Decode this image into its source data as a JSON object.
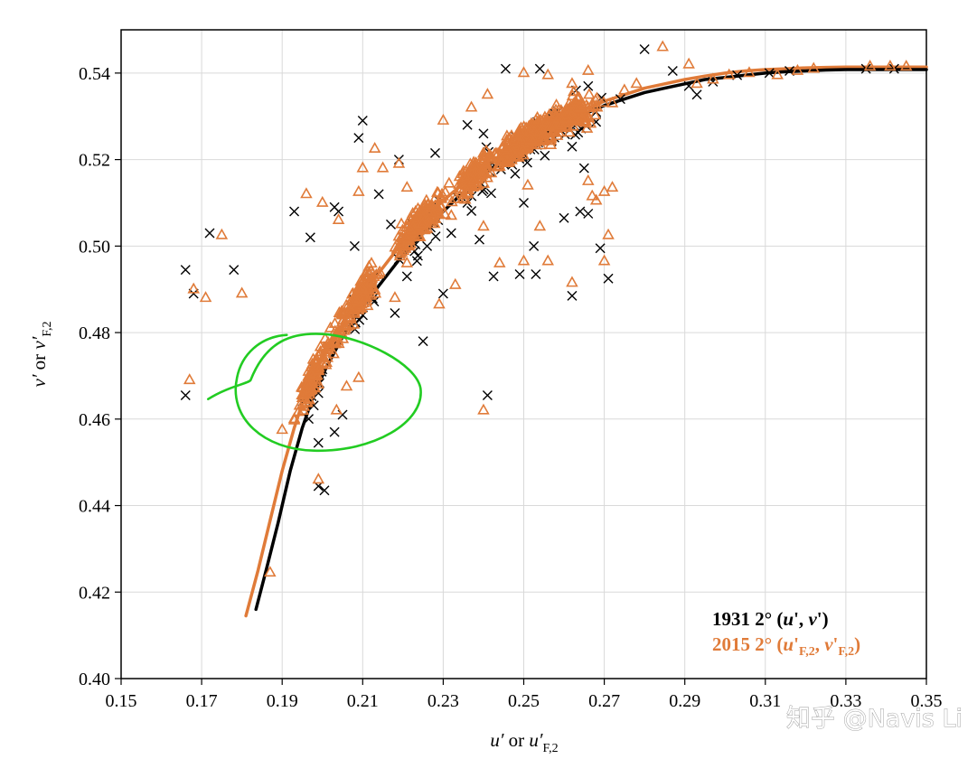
{
  "chart_data": {
    "type": "scatter",
    "xlabel": "u′ or u′F,2",
    "ylabel": "v′ or v′F,2",
    "xlim": [
      0.15,
      0.35
    ],
    "ylim": [
      0.4,
      0.55
    ],
    "xticks": [
      "0.15",
      "0.17",
      "0.19",
      "0.21",
      "0.23",
      "0.25",
      "0.27",
      "0.29",
      "0.31",
      "0.33",
      "0.35"
    ],
    "yticks": [
      "0.40",
      "0.42",
      "0.44",
      "0.46",
      "0.48",
      "0.50",
      "0.52",
      "0.54"
    ],
    "grid": true,
    "legend_position": "bottom-right",
    "legend": [
      {
        "label_main": "1931 2° (",
        "label_vars": "u′, v′",
        "label_end": ")",
        "color": "#000000",
        "marker": "x"
      },
      {
        "label_main": "2015 2° (",
        "label_vars": "u′F,2, v′F,2",
        "label_end": ")",
        "color": "#e07b39",
        "marker": "triangle"
      }
    ],
    "series": [
      {
        "name": "1931 2° (u′, v′)",
        "color": "#000000",
        "marker": "x",
        "points": [
          [
            0.166,
            0.4945
          ],
          [
            0.168,
            0.489
          ],
          [
            0.172,
            0.503
          ],
          [
            0.178,
            0.4945
          ],
          [
            0.166,
            0.4655
          ],
          [
            0.193,
            0.508
          ],
          [
            0.197,
            0.502
          ],
          [
            0.203,
            0.509
          ],
          [
            0.209,
            0.525
          ],
          [
            0.21,
            0.529
          ],
          [
            0.204,
            0.508
          ],
          [
            0.219,
            0.52
          ],
          [
            0.208,
            0.5
          ],
          [
            0.214,
            0.512
          ],
          [
            0.217,
            0.505
          ],
          [
            0.203,
            0.457
          ],
          [
            0.205,
            0.461
          ],
          [
            0.199,
            0.4545
          ],
          [
            0.199,
            0.4445
          ],
          [
            0.2005,
            0.4435
          ],
          [
            0.241,
            0.4655
          ],
          [
            0.228,
            0.5215
          ],
          [
            0.236,
            0.528
          ],
          [
            0.24,
            0.526
          ],
          [
            0.2455,
            0.541
          ],
          [
            0.254,
            0.541
          ],
          [
            0.263,
            0.536
          ],
          [
            0.266,
            0.537
          ],
          [
            0.28,
            0.5455
          ],
          [
            0.287,
            0.5405
          ],
          [
            0.26,
            0.5065
          ],
          [
            0.264,
            0.508
          ],
          [
            0.262,
            0.4885
          ],
          [
            0.269,
            0.4995
          ],
          [
            0.271,
            0.4925
          ],
          [
            0.249,
            0.4935
          ],
          [
            0.253,
            0.4935
          ],
          [
            0.225,
            0.478
          ],
          [
            0.23,
            0.489
          ],
          [
            0.236,
            0.51
          ],
          [
            0.245,
            0.519
          ],
          [
            0.252,
            0.5245
          ],
          [
            0.257,
            0.527
          ],
          [
            0.262,
            0.523
          ],
          [
            0.268,
            0.531
          ],
          [
            0.274,
            0.534
          ],
          [
            0.291,
            0.537
          ],
          [
            0.293,
            0.535
          ],
          [
            0.297,
            0.538
          ],
          [
            0.303,
            0.5395
          ],
          [
            0.311,
            0.54
          ],
          [
            0.316,
            0.5405
          ],
          [
            0.335,
            0.541
          ],
          [
            0.342,
            0.541
          ],
          [
            0.239,
            0.5015
          ],
          [
            0.2425,
            0.493
          ],
          [
            0.25,
            0.51
          ],
          [
            0.2525,
            0.5
          ],
          [
            0.265,
            0.518
          ],
          [
            0.266,
            0.5075
          ],
          [
            0.197,
            0.4665
          ],
          [
            0.199,
            0.466
          ],
          [
            0.2,
            0.4715
          ],
          [
            0.221,
            0.493
          ],
          [
            0.226,
            0.5
          ],
          [
            0.232,
            0.503
          ],
          [
            0.218,
            0.4845
          ],
          [
            0.211,
            0.489
          ]
        ]
      },
      {
        "name": "2015 2° (u′F,2, v′F,2)",
        "color": "#e07b39",
        "marker": "triangle",
        "points": [
          [
            0.167,
            0.469
          ],
          [
            0.168,
            0.49
          ],
          [
            0.171,
            0.488
          ],
          [
            0.175,
            0.5025
          ],
          [
            0.18,
            0.489
          ],
          [
            0.187,
            0.4245
          ],
          [
            0.196,
            0.512
          ],
          [
            0.2,
            0.51
          ],
          [
            0.204,
            0.506
          ],
          [
            0.209,
            0.5125
          ],
          [
            0.213,
            0.5225
          ],
          [
            0.21,
            0.518
          ],
          [
            0.215,
            0.518
          ],
          [
            0.221,
            0.5135
          ],
          [
            0.219,
            0.519
          ],
          [
            0.199,
            0.446
          ],
          [
            0.193,
            0.46
          ],
          [
            0.19,
            0.4575
          ],
          [
            0.24,
            0.462
          ],
          [
            0.23,
            0.529
          ],
          [
            0.237,
            0.532
          ],
          [
            0.241,
            0.535
          ],
          [
            0.25,
            0.54
          ],
          [
            0.256,
            0.5395
          ],
          [
            0.262,
            0.5375
          ],
          [
            0.266,
            0.5405
          ],
          [
            0.278,
            0.5375
          ],
          [
            0.2845,
            0.546
          ],
          [
            0.291,
            0.542
          ],
          [
            0.268,
            0.5105
          ],
          [
            0.27,
            0.5125
          ],
          [
            0.262,
            0.4915
          ],
          [
            0.27,
            0.4965
          ],
          [
            0.271,
            0.5025
          ],
          [
            0.272,
            0.5135
          ],
          [
            0.25,
            0.4965
          ],
          [
            0.256,
            0.4965
          ],
          [
            0.229,
            0.4865
          ],
          [
            0.233,
            0.491
          ],
          [
            0.246,
            0.5195
          ],
          [
            0.253,
            0.529
          ],
          [
            0.258,
            0.53
          ],
          [
            0.264,
            0.532
          ],
          [
            0.272,
            0.533
          ],
          [
            0.275,
            0.536
          ],
          [
            0.293,
            0.5375
          ],
          [
            0.297,
            0.5385
          ],
          [
            0.301,
            0.5395
          ],
          [
            0.306,
            0.54
          ],
          [
            0.313,
            0.5395
          ],
          [
            0.318,
            0.5405
          ],
          [
            0.322,
            0.541
          ],
          [
            0.336,
            0.5415
          ],
          [
            0.341,
            0.5415
          ],
          [
            0.345,
            0.5415
          ],
          [
            0.24,
            0.5045
          ],
          [
            0.244,
            0.496
          ],
          [
            0.251,
            0.514
          ],
          [
            0.254,
            0.5045
          ],
          [
            0.266,
            0.515
          ],
          [
            0.267,
            0.5115
          ],
          [
            0.197,
            0.4705
          ],
          [
            0.199,
            0.4745
          ],
          [
            0.201,
            0.473
          ],
          [
            0.221,
            0.496
          ],
          [
            0.226,
            0.504
          ],
          [
            0.232,
            0.507
          ],
          [
            0.218,
            0.488
          ],
          [
            0.211,
            0.493
          ],
          [
            0.206,
            0.4675
          ],
          [
            0.2035,
            0.462
          ],
          [
            0.209,
            0.4695
          ]
        ]
      },
      {
        "name": "1931 2° (u′, v′)",
        "type": "line",
        "color": "#000000",
        "x": [
          0.1835,
          0.186,
          0.189,
          0.192,
          0.195,
          0.198,
          0.201,
          0.205,
          0.21,
          0.215,
          0.22,
          0.225,
          0.23,
          0.235,
          0.24,
          0.245,
          0.25,
          0.255,
          0.26,
          0.265,
          0.27,
          0.275,
          0.28,
          0.285,
          0.29,
          0.295,
          0.3,
          0.305,
          0.31,
          0.315,
          0.32,
          0.325,
          0.33,
          0.335,
          0.34,
          0.345,
          0.35
        ],
        "y": [
          0.416,
          0.425,
          0.436,
          0.448,
          0.458,
          0.466,
          0.472,
          0.479,
          0.486,
          0.492,
          0.498,
          0.503,
          0.508,
          0.5125,
          0.5165,
          0.52,
          0.5235,
          0.526,
          0.5285,
          0.5305,
          0.5325,
          0.534,
          0.5355,
          0.5365,
          0.5375,
          0.5385,
          0.539,
          0.5395,
          0.54,
          0.5403,
          0.5405,
          0.5407,
          0.5408,
          0.5408,
          0.5408,
          0.5408,
          0.5408
        ]
      },
      {
        "name": "2015 2° (u′F,2, v′F,2)",
        "type": "line",
        "color": "#e07b39",
        "x": [
          0.181,
          0.184,
          0.187,
          0.19,
          0.193,
          0.196,
          0.2,
          0.205,
          0.21,
          0.215,
          0.22,
          0.225,
          0.23,
          0.235,
          0.24,
          0.245,
          0.25,
          0.255,
          0.26,
          0.265,
          0.27,
          0.275,
          0.28,
          0.285,
          0.29,
          0.295,
          0.3,
          0.305,
          0.31,
          0.315,
          0.32,
          0.325,
          0.33,
          0.335,
          0.34,
          0.345,
          0.35
        ],
        "y": [
          0.4145,
          0.425,
          0.4365,
          0.448,
          0.458,
          0.4665,
          0.4745,
          0.482,
          0.489,
          0.495,
          0.501,
          0.506,
          0.5105,
          0.5145,
          0.518,
          0.5215,
          0.5245,
          0.527,
          0.5295,
          0.5315,
          0.5335,
          0.535,
          0.5365,
          0.5375,
          0.5385,
          0.5393,
          0.54,
          0.5405,
          0.5408,
          0.541,
          0.5412,
          0.5413,
          0.5414,
          0.5414,
          0.5414,
          0.5414,
          0.5414
        ]
      }
    ],
    "annotations": [
      {
        "type": "hand-drawn-circle",
        "color": "#22cc22",
        "center": [
          0.199,
          0.4665
        ],
        "note": ""
      }
    ]
  },
  "watermark": "知乎 @Navis Li"
}
